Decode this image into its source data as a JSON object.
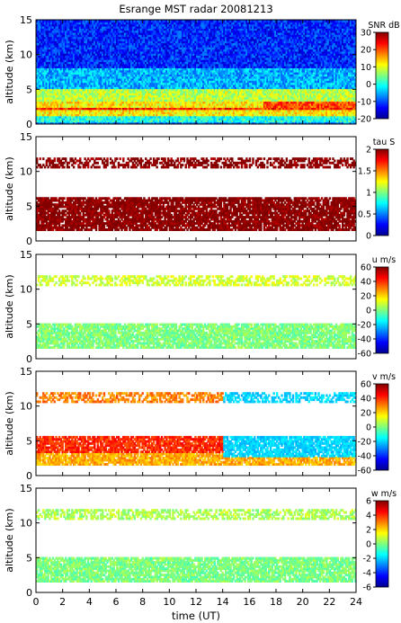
{
  "figure": {
    "title": "Esrange MST radar 20081213",
    "xlabel": "time (UT)",
    "x_ticks": [
      "0",
      "2",
      "4",
      "6",
      "8",
      "10",
      "12",
      "14",
      "16",
      "18",
      "20",
      "22",
      "24"
    ]
  },
  "chart_data": [
    {
      "type": "heatmap",
      "variable": "SNR",
      "ylabel": "altitude (km)",
      "colorbar_label": "SNR dB",
      "xlim": [
        0,
        24
      ],
      "ylim": [
        0,
        15
      ],
      "clim": [
        -20,
        30
      ],
      "y_ticks": [
        "0",
        "5",
        "10",
        "15"
      ],
      "colorbar_ticks": [
        "30",
        "20",
        "10",
        "0",
        "-10",
        "-20"
      ],
      "coverage": "full",
      "layers": [
        {
          "alt": [
            0.3,
            1.0
          ],
          "value": 0
        },
        {
          "alt": [
            1.0,
            3.0
          ],
          "value": 12
        },
        {
          "alt": [
            3.0,
            5.0
          ],
          "value": 8
        },
        {
          "alt": [
            5.0,
            8.0
          ],
          "value": -5
        },
        {
          "alt": [
            8.0,
            15.0
          ],
          "value": -12
        }
      ]
    },
    {
      "type": "heatmap",
      "variable": "tau",
      "ylabel": "altitude (km)",
      "colorbar_label": "tau S",
      "xlim": [
        0,
        24
      ],
      "ylim": [
        0,
        15
      ],
      "clim": [
        0,
        2
      ],
      "y_ticks": [
        "0",
        "5",
        "10",
        "15"
      ],
      "colorbar_ticks": [
        "2",
        "1.5",
        "1",
        "0.5",
        "0"
      ],
      "coverage": "sparse",
      "layers": [
        {
          "alt": [
            1.5,
            6.0
          ],
          "value": 2.0
        },
        {
          "alt": [
            10.5,
            12.0
          ],
          "value": 2.0
        }
      ]
    },
    {
      "type": "heatmap",
      "variable": "u",
      "ylabel": "altitude (km)",
      "colorbar_label": "u m/s",
      "xlim": [
        0,
        24
      ],
      "ylim": [
        0,
        15
      ],
      "clim": [
        -60,
        60
      ],
      "y_ticks": [
        "0",
        "5",
        "10",
        "15"
      ],
      "colorbar_ticks": [
        "60",
        "40",
        "20",
        "0",
        "-20",
        "-40",
        "-60"
      ],
      "coverage": "sparse",
      "layers": [
        {
          "alt": [
            1.5,
            5.0
          ],
          "value": 0
        },
        {
          "alt": [
            10.5,
            12.0
          ],
          "value": 10
        }
      ]
    },
    {
      "type": "heatmap",
      "variable": "v",
      "ylabel": "altitude (km)",
      "colorbar_label": "v m/s",
      "xlim": [
        0,
        24
      ],
      "ylim": [
        0,
        15
      ],
      "clim": [
        -60,
        60
      ],
      "y_ticks": [
        "0",
        "5",
        "10",
        "15"
      ],
      "colorbar_ticks": [
        "60",
        "40",
        "20",
        "0",
        "-20",
        "-40",
        "-60"
      ],
      "coverage": "sparse",
      "layers": [
        {
          "alt": [
            1.5,
            3.0
          ],
          "value": 25
        },
        {
          "alt": [
            3.0,
            5.5
          ],
          "value": 40
        },
        {
          "alt": [
            10.5,
            12.0
          ],
          "value": 30
        }
      ]
    },
    {
      "type": "heatmap",
      "variable": "w",
      "ylabel": "altitude (km)",
      "colorbar_label": "w m/s",
      "xlim": [
        0,
        24
      ],
      "ylim": [
        0,
        15
      ],
      "clim": [
        -6,
        6
      ],
      "y_ticks": [
        "0",
        "5",
        "10",
        "15"
      ],
      "colorbar_ticks": [
        "6",
        "4",
        "2",
        "0",
        "-2",
        "-4",
        "-6"
      ],
      "coverage": "sparse",
      "layers": [
        {
          "alt": [
            1.5,
            5.0
          ],
          "value": 0
        },
        {
          "alt": [
            10.5,
            12.0
          ],
          "value": 0.5
        }
      ]
    }
  ],
  "colors": {
    "background": "#ffffff",
    "sky_blue_band": "#7fd3f5"
  }
}
